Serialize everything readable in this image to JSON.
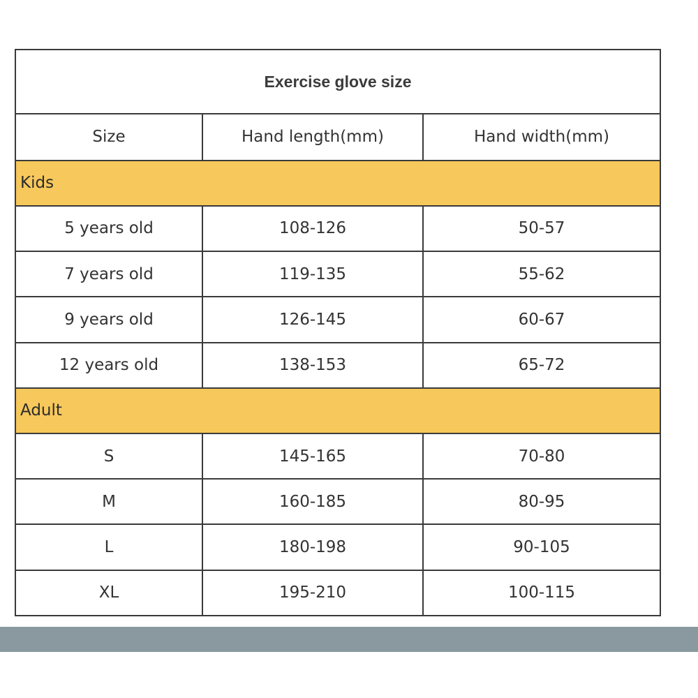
{
  "title": "Exercise glove size",
  "headers": [
    "Size",
    "Hand length(mm)",
    "Hand width(mm)"
  ],
  "groups": [
    {
      "label": "Kids",
      "rows": [
        [
          "5 years old",
          "108-126",
          "50-57"
        ],
        [
          "7 years old",
          "119-135",
          "55-62"
        ],
        [
          "9 years old",
          "126-145",
          "60-67"
        ],
        [
          "12 years old",
          "138-153",
          "65-72"
        ]
      ]
    },
    {
      "label": "Adult",
      "rows": [
        [
          "S",
          "145-165",
          "70-80"
        ],
        [
          "M",
          "160-185",
          "80-95"
        ],
        [
          "L",
          "180-198",
          "90-105"
        ],
        [
          "XL",
          "195-210",
          "100-115"
        ]
      ]
    }
  ],
  "colors": {
    "group_band": "#f7c85b",
    "footer_band": "#89999f",
    "grid_line": "#3a3a3a"
  }
}
